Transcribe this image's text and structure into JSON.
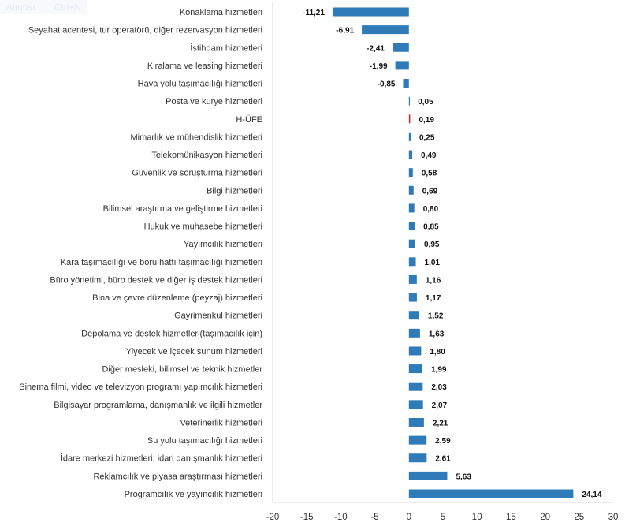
{
  "ghost_overlay": {
    "label": "Alıntısı",
    "shortcut": "Ctrl+N"
  },
  "chart_data": {
    "type": "bar",
    "orientation": "horizontal",
    "title": "",
    "xlabel": "",
    "ylabel": "",
    "xlim": [
      -20,
      30
    ],
    "xticks": [
      -20,
      -15,
      -10,
      -5,
      0,
      5,
      10,
      15,
      20,
      25,
      30
    ],
    "grid": false,
    "legend": "none",
    "colors": {
      "default": "#2e7bb8",
      "highlight": "#c0392b"
    },
    "highlight_category": "H-ÜFE",
    "categories": [
      "Konaklama hizmetleri",
      "Seyahat acentesi, tur operatörü, diğer rezervasyon hizmetleri",
      "İstihdam hizmetleri",
      "Kiralama ve leasing hizmetleri",
      "Hava yolu taşımacılığı hizmetleri",
      "Posta ve kurye hizmetleri",
      "H-ÜFE",
      "Mimarlık ve mühendislik hizmetleri",
      "Telekomünikasyon hizmetleri",
      "Güvenlik ve soruşturma hizmetleri",
      "Bilgi hizmetleri",
      "Bilimsel araştırma ve geliştirme hizmetleri",
      "Hukuk ve muhasebe hizmetleri",
      "Yayımcılık hizmetleri",
      "Kara taşımacılığı ve boru hattı taşımacılığı hizmetleri",
      "Büro yönetimi, büro destek ve diğer iş destek hizmetleri",
      "Bina ve çevre düzenleme (peyzaj) hizmetleri",
      "Gayrimenkul hizmetleri",
      "Depolama ve destek hizmetleri(taşımacılık için)",
      "Yiyecek ve içecek sunum hizmetleri",
      "Diğer mesleki, bilimsel ve teknik hizmetler",
      "Sinema filmi, video ve televizyon programı yapımcılık hizmetleri",
      "Bilgisayar programlama, danışmanlık ve ilgili hizmetler",
      "Veterinerlik hizmetleri",
      "Su yolu taşımacılığı hizmetleri",
      "İdare merkezi hizmetleri; idari danışmanlık hizmetleri",
      "Reklamcılık ve piyasa araştırması hizmetleri",
      "Programcılık ve yayıncılık hizmetleri"
    ],
    "values": [
      -11.21,
      -6.91,
      -2.41,
      -1.99,
      -0.85,
      0.05,
      0.19,
      0.25,
      0.49,
      0.58,
      0.69,
      0.8,
      0.85,
      0.95,
      1.01,
      1.16,
      1.17,
      1.52,
      1.63,
      1.8,
      1.99,
      2.03,
      2.07,
      2.21,
      2.59,
      2.61,
      5.63,
      24.14
    ],
    "data_labels": [
      "-11,21",
      "-6,91",
      "-2,41",
      "-1,99",
      "-0,85",
      "0,05",
      "0,19",
      "0,25",
      "0,49",
      "0,58",
      "0,69",
      "0,80",
      "0,85",
      "0,95",
      "1,01",
      "1,16",
      "1,17",
      "1,52",
      "1,63",
      "1,80",
      "1,99",
      "2,03",
      "2,07",
      "2,21",
      "2,59",
      "2,61",
      "5,63",
      "24,14"
    ]
  }
}
